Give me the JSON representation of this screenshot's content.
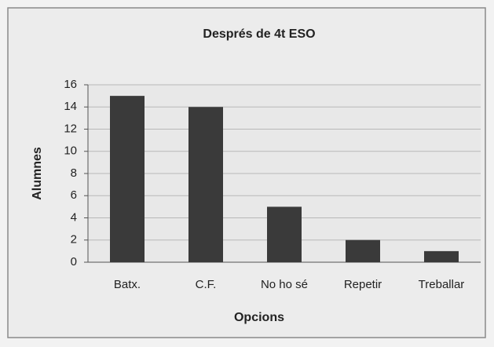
{
  "chart_data": {
    "type": "bar",
    "title": "Després de 4t ESO",
    "x_label": "Opcions",
    "y_label": "Alumnes",
    "categories": [
      "Batx.",
      "C.F.",
      "No ho sé",
      "Repetir",
      "Treballar"
    ],
    "values": [
      15,
      14,
      5,
      2,
      1
    ],
    "color": "#3a3a3a",
    "ylim": [
      0,
      16
    ],
    "yticks": [
      0,
      2,
      4,
      6,
      8,
      10,
      12,
      14,
      16
    ],
    "grid": true
  }
}
